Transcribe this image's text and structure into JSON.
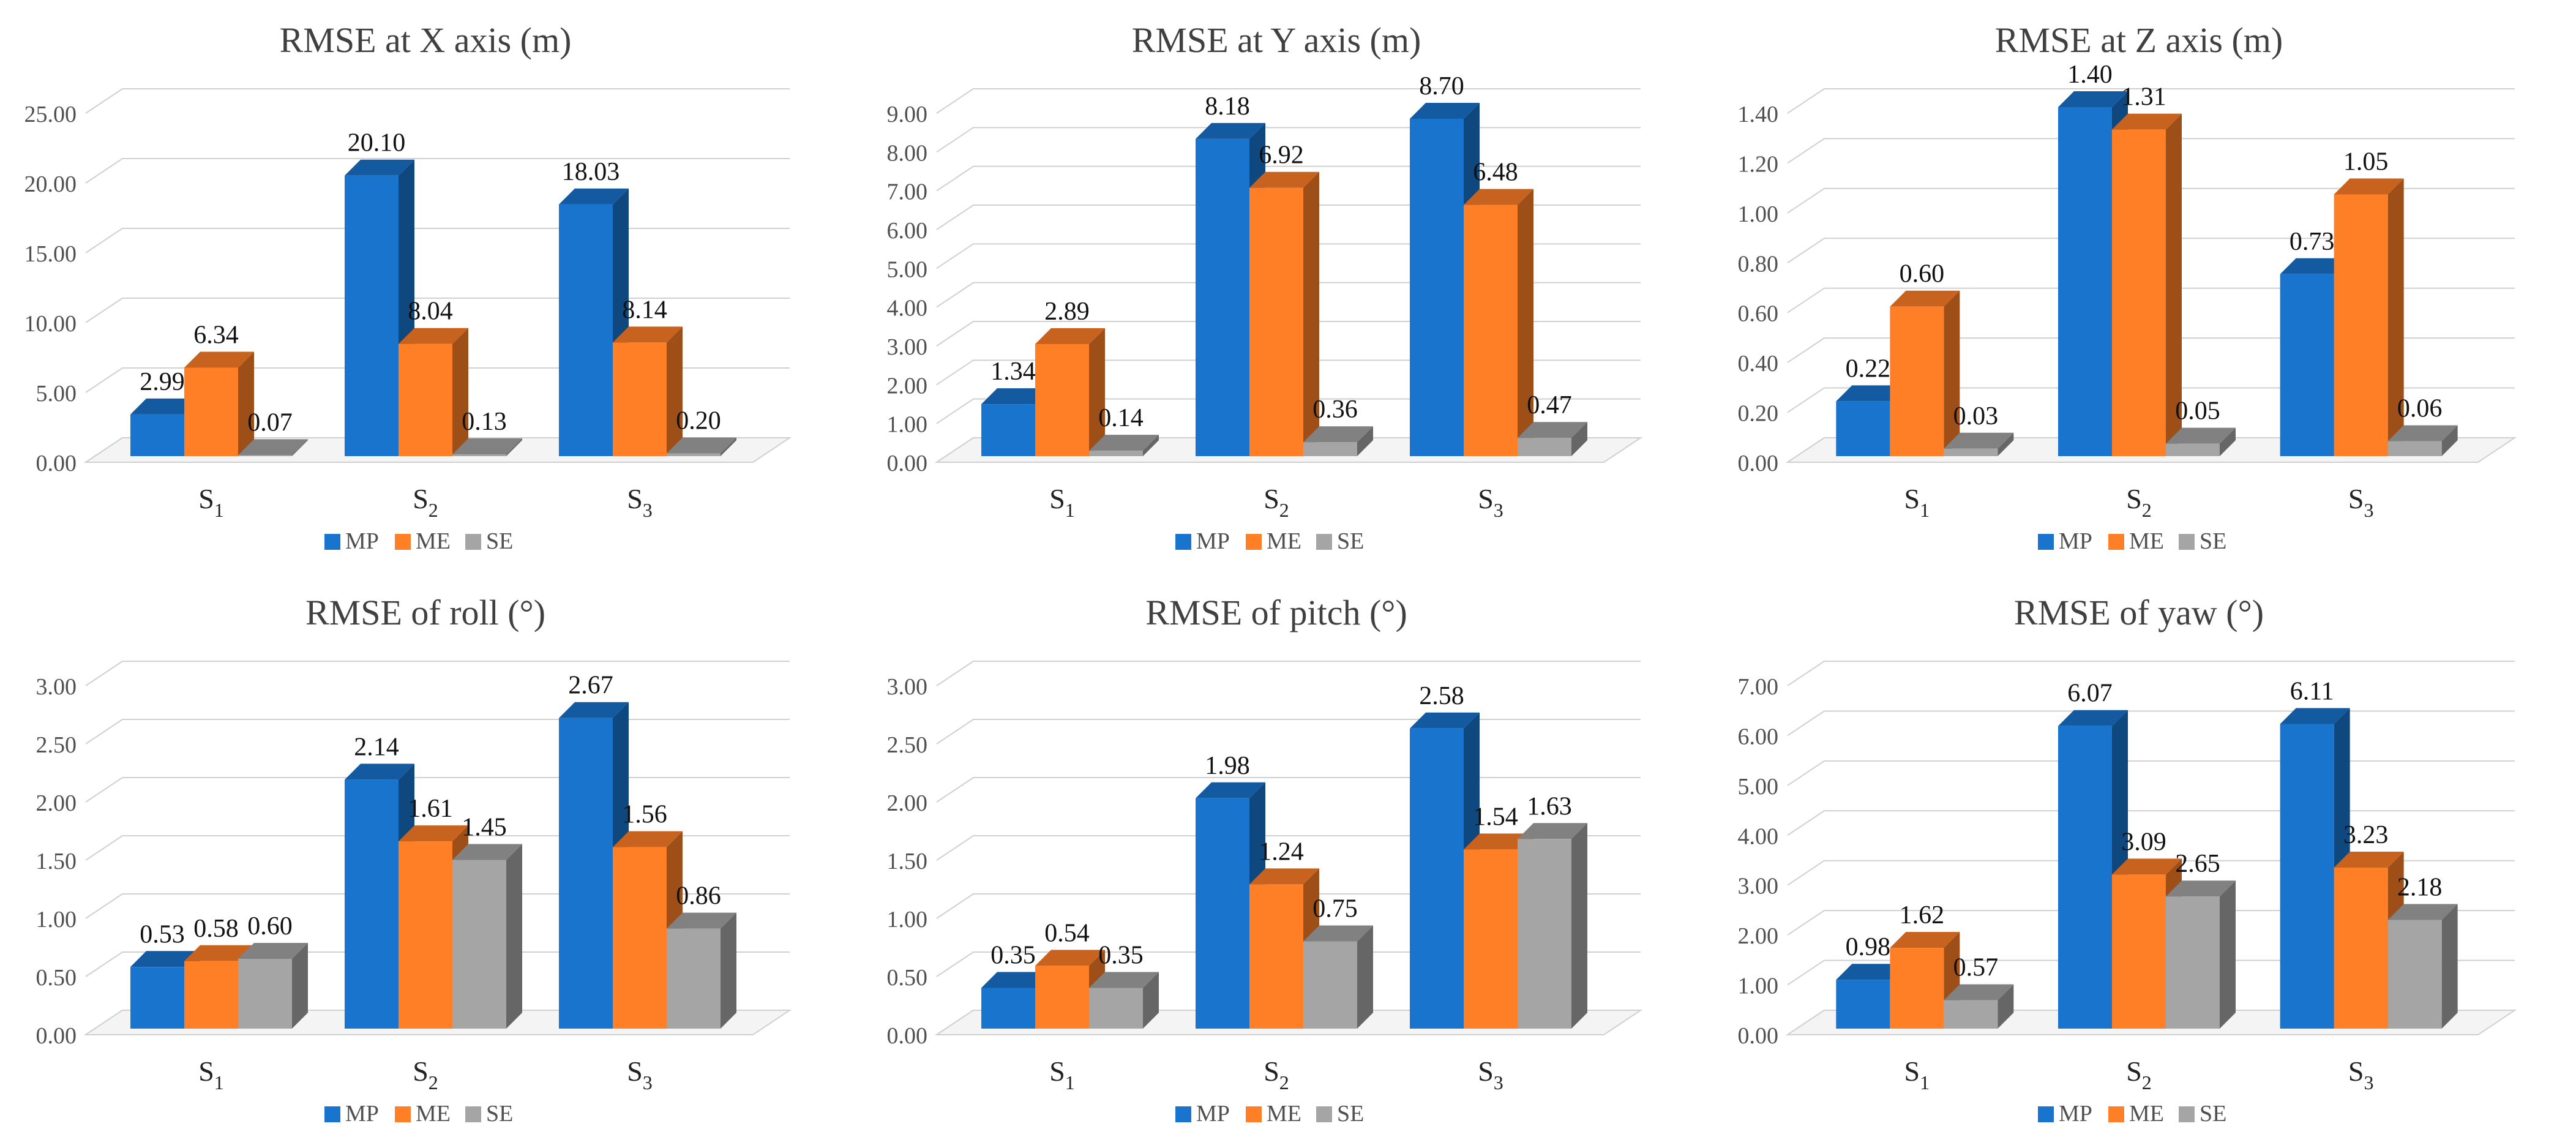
{
  "colors": {
    "MP": "#1874CD",
    "ME": "#FF7F27",
    "SE": "#A5A5A5"
  },
  "legend": [
    "MP",
    "ME",
    "SE"
  ],
  "chart_data": [
    {
      "type": "bar",
      "title": "RMSE at X axis (m)",
      "categories": [
        "S1",
        "S2",
        "S3"
      ],
      "category_labels": [
        {
          "base": "S",
          "sub": "1"
        },
        {
          "base": "S",
          "sub": "2"
        },
        {
          "base": "S",
          "sub": "3"
        }
      ],
      "ylim": [
        0,
        25
      ],
      "yticks": [
        "0.00",
        "5.00",
        "10.00",
        "15.00",
        "20.00",
        "25.00"
      ],
      "series": [
        {
          "name": "MP",
          "values": [
            2.99,
            20.1,
            18.03
          ],
          "labels": [
            "2.99",
            "20.10",
            "18.03"
          ]
        },
        {
          "name": "ME",
          "values": [
            6.34,
            8.04,
            8.14
          ],
          "labels": [
            "6.34",
            "8.04",
            "8.14"
          ]
        },
        {
          "name": "SE",
          "values": [
            0.07,
            0.13,
            0.2
          ],
          "labels": [
            "0.07",
            "0.13",
            "0.20"
          ]
        }
      ]
    },
    {
      "type": "bar",
      "title": "RMSE at Y axis (m)",
      "categories": [
        "S1",
        "S2",
        "S3"
      ],
      "category_labels": [
        {
          "base": "S",
          "sub": "1"
        },
        {
          "base": "S",
          "sub": "2"
        },
        {
          "base": "S",
          "sub": "3"
        }
      ],
      "ylim": [
        0,
        9
      ],
      "yticks": [
        "0.00",
        "1.00",
        "2.00",
        "3.00",
        "4.00",
        "5.00",
        "6.00",
        "7.00",
        "8.00",
        "9.00"
      ],
      "series": [
        {
          "name": "MP",
          "values": [
            1.34,
            8.18,
            8.7
          ],
          "labels": [
            "1.34",
            "8.18",
            "8.70"
          ]
        },
        {
          "name": "ME",
          "values": [
            2.89,
            6.92,
            6.48
          ],
          "labels": [
            "2.89",
            "6.92",
            "6.48"
          ]
        },
        {
          "name": "SE",
          "values": [
            0.14,
            0.36,
            0.47
          ],
          "labels": [
            "0.14",
            "0.36",
            "0.47"
          ]
        }
      ]
    },
    {
      "type": "bar",
      "title": "RMSE at Z axis (m)",
      "categories": [
        "S1",
        "S2",
        "S3"
      ],
      "category_labels": [
        {
          "base": "S",
          "sub": "1"
        },
        {
          "base": "S",
          "sub": "2"
        },
        {
          "base": "S",
          "sub": "3"
        }
      ],
      "ylim": [
        0,
        1.4
      ],
      "yticks": [
        "0.00",
        "0.20",
        "0.40",
        "0.60",
        "0.80",
        "1.00",
        "1.20",
        "1.40"
      ],
      "series": [
        {
          "name": "MP",
          "values": [
            0.22,
            1.4,
            0.73
          ],
          "labels": [
            "0.22",
            "1.40",
            "0.73"
          ]
        },
        {
          "name": "ME",
          "values": [
            0.6,
            1.31,
            1.05
          ],
          "labels": [
            "0.60",
            "1.31",
            "1.05"
          ]
        },
        {
          "name": "SE",
          "values": [
            0.03,
            0.05,
            0.06
          ],
          "labels": [
            "0.03",
            "0.05",
            "0.06"
          ]
        }
      ]
    },
    {
      "type": "bar",
      "title": "RMSE of roll (°)",
      "categories": [
        "S1",
        "S2",
        "S3"
      ],
      "category_labels": [
        {
          "base": "S",
          "sub": "1"
        },
        {
          "base": "S",
          "sub": "2"
        },
        {
          "base": "S",
          "sub": "3"
        }
      ],
      "ylim": [
        0,
        3
      ],
      "yticks": [
        "0.00",
        "0.50",
        "1.00",
        "1.50",
        "2.00",
        "2.50",
        "3.00"
      ],
      "series": [
        {
          "name": "MP",
          "values": [
            0.53,
            2.14,
            2.67
          ],
          "labels": [
            "0.53",
            "2.14",
            "2.67"
          ]
        },
        {
          "name": "ME",
          "values": [
            0.58,
            1.61,
            1.56
          ],
          "labels": [
            "0.58",
            "1.61",
            "1.56"
          ]
        },
        {
          "name": "SE",
          "values": [
            0.6,
            1.45,
            0.86
          ],
          "labels": [
            "0.60",
            "1.45",
            "0.86"
          ]
        }
      ]
    },
    {
      "type": "bar",
      "title": "RMSE of pitch (°)",
      "categories": [
        "S1",
        "S2",
        "S3"
      ],
      "category_labels": [
        {
          "base": "S",
          "sub": "1"
        },
        {
          "base": "S",
          "sub": "2"
        },
        {
          "base": "S",
          "sub": "3"
        }
      ],
      "ylim": [
        0,
        3
      ],
      "yticks": [
        "0.00",
        "0.50",
        "1.00",
        "1.50",
        "2.00",
        "2.50",
        "3.00"
      ],
      "series": [
        {
          "name": "MP",
          "values": [
            0.35,
            1.98,
            2.58
          ],
          "labels": [
            "0.35",
            "1.98",
            "2.58"
          ]
        },
        {
          "name": "ME",
          "values": [
            0.54,
            1.24,
            1.54
          ],
          "labels": [
            "0.54",
            "1.24",
            "1.54"
          ]
        },
        {
          "name": "SE",
          "values": [
            0.35,
            0.75,
            1.63
          ],
          "labels": [
            "0.35",
            "0.75",
            "1.63"
          ]
        }
      ]
    },
    {
      "type": "bar",
      "title": "RMSE of yaw (°)",
      "categories": [
        "S1",
        "S2",
        "S3"
      ],
      "category_labels": [
        {
          "base": "S",
          "sub": "1"
        },
        {
          "base": "S",
          "sub": "2"
        },
        {
          "base": "S",
          "sub": "3"
        }
      ],
      "ylim": [
        0,
        7
      ],
      "yticks": [
        "0.00",
        "1.00",
        "2.00",
        "3.00",
        "4.00",
        "5.00",
        "6.00",
        "7.00"
      ],
      "series": [
        {
          "name": "MP",
          "values": [
            0.98,
            6.07,
            6.11
          ],
          "labels": [
            "0.98",
            "6.07",
            "6.11"
          ]
        },
        {
          "name": "ME",
          "values": [
            1.62,
            3.09,
            3.23
          ],
          "labels": [
            "1.62",
            "3.09",
            "3.23"
          ]
        },
        {
          "name": "SE",
          "values": [
            0.57,
            2.65,
            2.18
          ],
          "labels": [
            "0.57",
            "2.65",
            "2.18"
          ]
        }
      ]
    }
  ]
}
